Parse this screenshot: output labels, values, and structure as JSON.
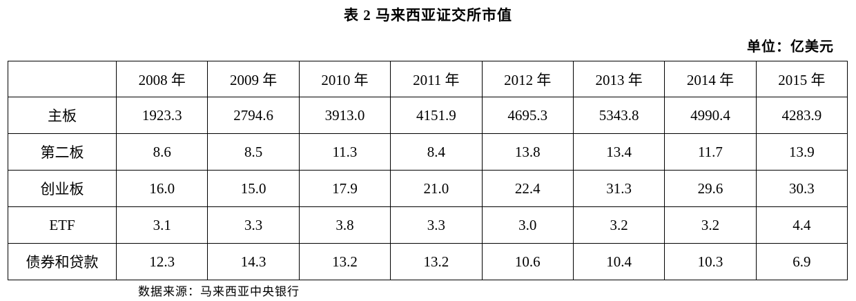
{
  "page": {
    "title": "表 2 马来西亚证交所市值",
    "unit_label": "单位：亿美元",
    "source_note": "数据来源：马来西亚中央银行"
  },
  "table": {
    "corner": "",
    "header": [
      "",
      "2008 年",
      "2009 年",
      "2010 年",
      "2011 年",
      "2012 年",
      "2013 年",
      "2014 年",
      "2015 年"
    ],
    "rows": [
      {
        "label": "主板",
        "values": [
          "1923.3",
          "2794.6",
          "3913.0",
          "4151.9",
          "4695.3",
          "5343.8",
          "4990.4",
          "4283.9"
        ]
      },
      {
        "label": "第二板",
        "values": [
          "8.6",
          "8.5",
          "11.3",
          "8.4",
          "13.8",
          "13.4",
          "11.7",
          "13.9"
        ]
      },
      {
        "label": "创业板",
        "values": [
          "16.0",
          "15.0",
          "17.9",
          "21.0",
          "22.4",
          "31.3",
          "29.6",
          "30.3"
        ]
      },
      {
        "label": "ETF",
        "values": [
          "3.1",
          "3.3",
          "3.8",
          "3.3",
          "3.0",
          "3.2",
          "3.2",
          "4.4"
        ]
      },
      {
        "label": "债券和贷款",
        "values": [
          "12.3",
          "14.3",
          "13.2",
          "13.2",
          "10.6",
          "10.4",
          "10.3",
          "6.9"
        ]
      }
    ]
  },
  "chart_data": {
    "type": "table",
    "title": "表 2 马来西亚证交所市值",
    "unit": "亿美元",
    "source": "马来西亚中央银行",
    "categories": [
      "2008",
      "2009",
      "2010",
      "2011",
      "2012",
      "2013",
      "2014",
      "2015"
    ],
    "series": [
      {
        "name": "主板",
        "values": [
          1923.3,
          2794.6,
          3913.0,
          4151.9,
          4695.3,
          5343.8,
          4990.4,
          4283.9
        ]
      },
      {
        "name": "第二板",
        "values": [
          8.6,
          8.5,
          11.3,
          8.4,
          13.8,
          13.4,
          11.7,
          13.9
        ]
      },
      {
        "name": "创业板",
        "values": [
          16.0,
          15.0,
          17.9,
          21.0,
          22.4,
          31.3,
          29.6,
          30.3
        ]
      },
      {
        "name": "ETF",
        "values": [
          3.1,
          3.3,
          3.8,
          3.3,
          3.0,
          3.2,
          3.2,
          4.4
        ]
      },
      {
        "name": "债券和贷款",
        "values": [
          12.3,
          14.3,
          13.2,
          13.2,
          10.6,
          10.4,
          10.3,
          6.9
        ]
      }
    ]
  }
}
